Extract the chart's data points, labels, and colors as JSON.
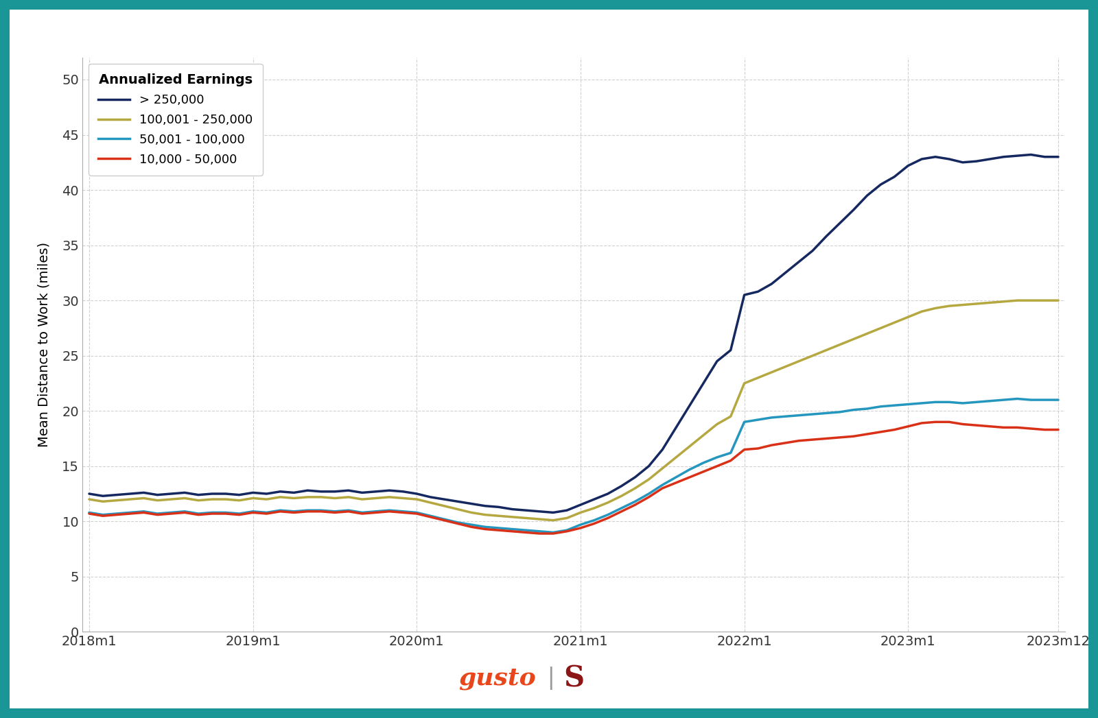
{
  "ylabel": "Mean Distance to Work (miles)",
  "background_color": "#ffffff",
  "border_color": "#1a9696",
  "border_width": 14,
  "ylim": [
    0,
    52
  ],
  "yticks": [
    0,
    5,
    10,
    15,
    20,
    25,
    30,
    35,
    40,
    45,
    50
  ],
  "xtick_positions": [
    0,
    12,
    24,
    36,
    48,
    60,
    71
  ],
  "xtick_labels": [
    "2018m1",
    "2019m1",
    "2020m1",
    "2021m1",
    "2022m1",
    "2023m1",
    "2023m12"
  ],
  "legend_title": "Annualized Earnings",
  "grid_color": "#cccccc",
  "grid_linestyle": "--",
  "series": [
    {
      "label": "> 250,000",
      "color": "#162860",
      "linewidth": 2.5,
      "data": [
        12.5,
        12.3,
        12.4,
        12.5,
        12.6,
        12.4,
        12.5,
        12.6,
        12.4,
        12.5,
        12.5,
        12.4,
        12.6,
        12.5,
        12.7,
        12.6,
        12.8,
        12.7,
        12.7,
        12.8,
        12.6,
        12.7,
        12.8,
        12.7,
        12.5,
        12.2,
        12.0,
        11.8,
        11.6,
        11.4,
        11.3,
        11.1,
        11.0,
        10.9,
        10.8,
        11.0,
        11.5,
        12.0,
        12.5,
        13.2,
        14.0,
        15.0,
        16.5,
        18.5,
        20.5,
        22.5,
        24.5,
        25.5,
        30.5,
        30.8,
        31.5,
        32.5,
        33.5,
        34.5,
        35.8,
        37.0,
        38.2,
        39.5,
        40.5,
        41.2,
        42.2,
        42.8,
        43.0,
        42.8,
        42.5,
        42.6,
        42.8,
        43.0,
        43.1,
        43.2,
        43.0,
        43.0
      ]
    },
    {
      "label": "100,001 - 250,000",
      "color": "#b5a840",
      "linewidth": 2.5,
      "data": [
        12.0,
        11.8,
        11.9,
        12.0,
        12.1,
        11.9,
        12.0,
        12.1,
        11.9,
        12.0,
        12.0,
        11.9,
        12.1,
        12.0,
        12.2,
        12.1,
        12.2,
        12.2,
        12.1,
        12.2,
        12.0,
        12.1,
        12.2,
        12.1,
        12.0,
        11.7,
        11.4,
        11.1,
        10.8,
        10.6,
        10.5,
        10.4,
        10.3,
        10.2,
        10.1,
        10.3,
        10.8,
        11.2,
        11.7,
        12.3,
        13.0,
        13.8,
        14.8,
        15.8,
        16.8,
        17.8,
        18.8,
        19.5,
        22.5,
        23.0,
        23.5,
        24.0,
        24.5,
        25.0,
        25.5,
        26.0,
        26.5,
        27.0,
        27.5,
        28.0,
        28.5,
        29.0,
        29.3,
        29.5,
        29.6,
        29.7,
        29.8,
        29.9,
        30.0,
        30.0,
        30.0,
        30.0
      ]
    },
    {
      "label": "50,001 - 100,000",
      "color": "#2596be",
      "linewidth": 2.5,
      "data": [
        10.8,
        10.6,
        10.7,
        10.8,
        10.9,
        10.7,
        10.8,
        10.9,
        10.7,
        10.8,
        10.8,
        10.7,
        10.9,
        10.8,
        11.0,
        10.9,
        11.0,
        11.0,
        10.9,
        11.0,
        10.8,
        10.9,
        11.0,
        10.9,
        10.8,
        10.5,
        10.2,
        9.9,
        9.7,
        9.5,
        9.4,
        9.3,
        9.2,
        9.1,
        9.0,
        9.2,
        9.7,
        10.1,
        10.6,
        11.2,
        11.8,
        12.5,
        13.3,
        14.0,
        14.7,
        15.3,
        15.8,
        16.2,
        19.0,
        19.2,
        19.4,
        19.5,
        19.6,
        19.7,
        19.8,
        19.9,
        20.1,
        20.2,
        20.4,
        20.5,
        20.6,
        20.7,
        20.8,
        20.8,
        20.7,
        20.8,
        20.9,
        21.0,
        21.1,
        21.0,
        21.0,
        21.0
      ]
    },
    {
      "label": "10,000 - 50,000",
      "color": "#d93018",
      "linewidth": 2.5,
      "data": [
        10.7,
        10.5,
        10.6,
        10.7,
        10.8,
        10.6,
        10.7,
        10.8,
        10.6,
        10.7,
        10.7,
        10.6,
        10.8,
        10.7,
        10.9,
        10.8,
        10.9,
        10.9,
        10.8,
        10.9,
        10.7,
        10.8,
        10.9,
        10.8,
        10.7,
        10.4,
        10.1,
        9.8,
        9.5,
        9.3,
        9.2,
        9.1,
        9.0,
        8.9,
        8.9,
        9.1,
        9.4,
        9.8,
        10.3,
        10.9,
        11.5,
        12.2,
        13.0,
        13.5,
        14.0,
        14.5,
        15.0,
        15.5,
        16.5,
        16.6,
        16.9,
        17.1,
        17.3,
        17.4,
        17.5,
        17.6,
        17.7,
        17.9,
        18.1,
        18.3,
        18.6,
        18.9,
        19.0,
        19.0,
        18.8,
        18.7,
        18.6,
        18.5,
        18.5,
        18.4,
        18.3,
        18.3
      ]
    }
  ],
  "gusto_color": "#e8471c",
  "stanford_color": "#8c1515"
}
